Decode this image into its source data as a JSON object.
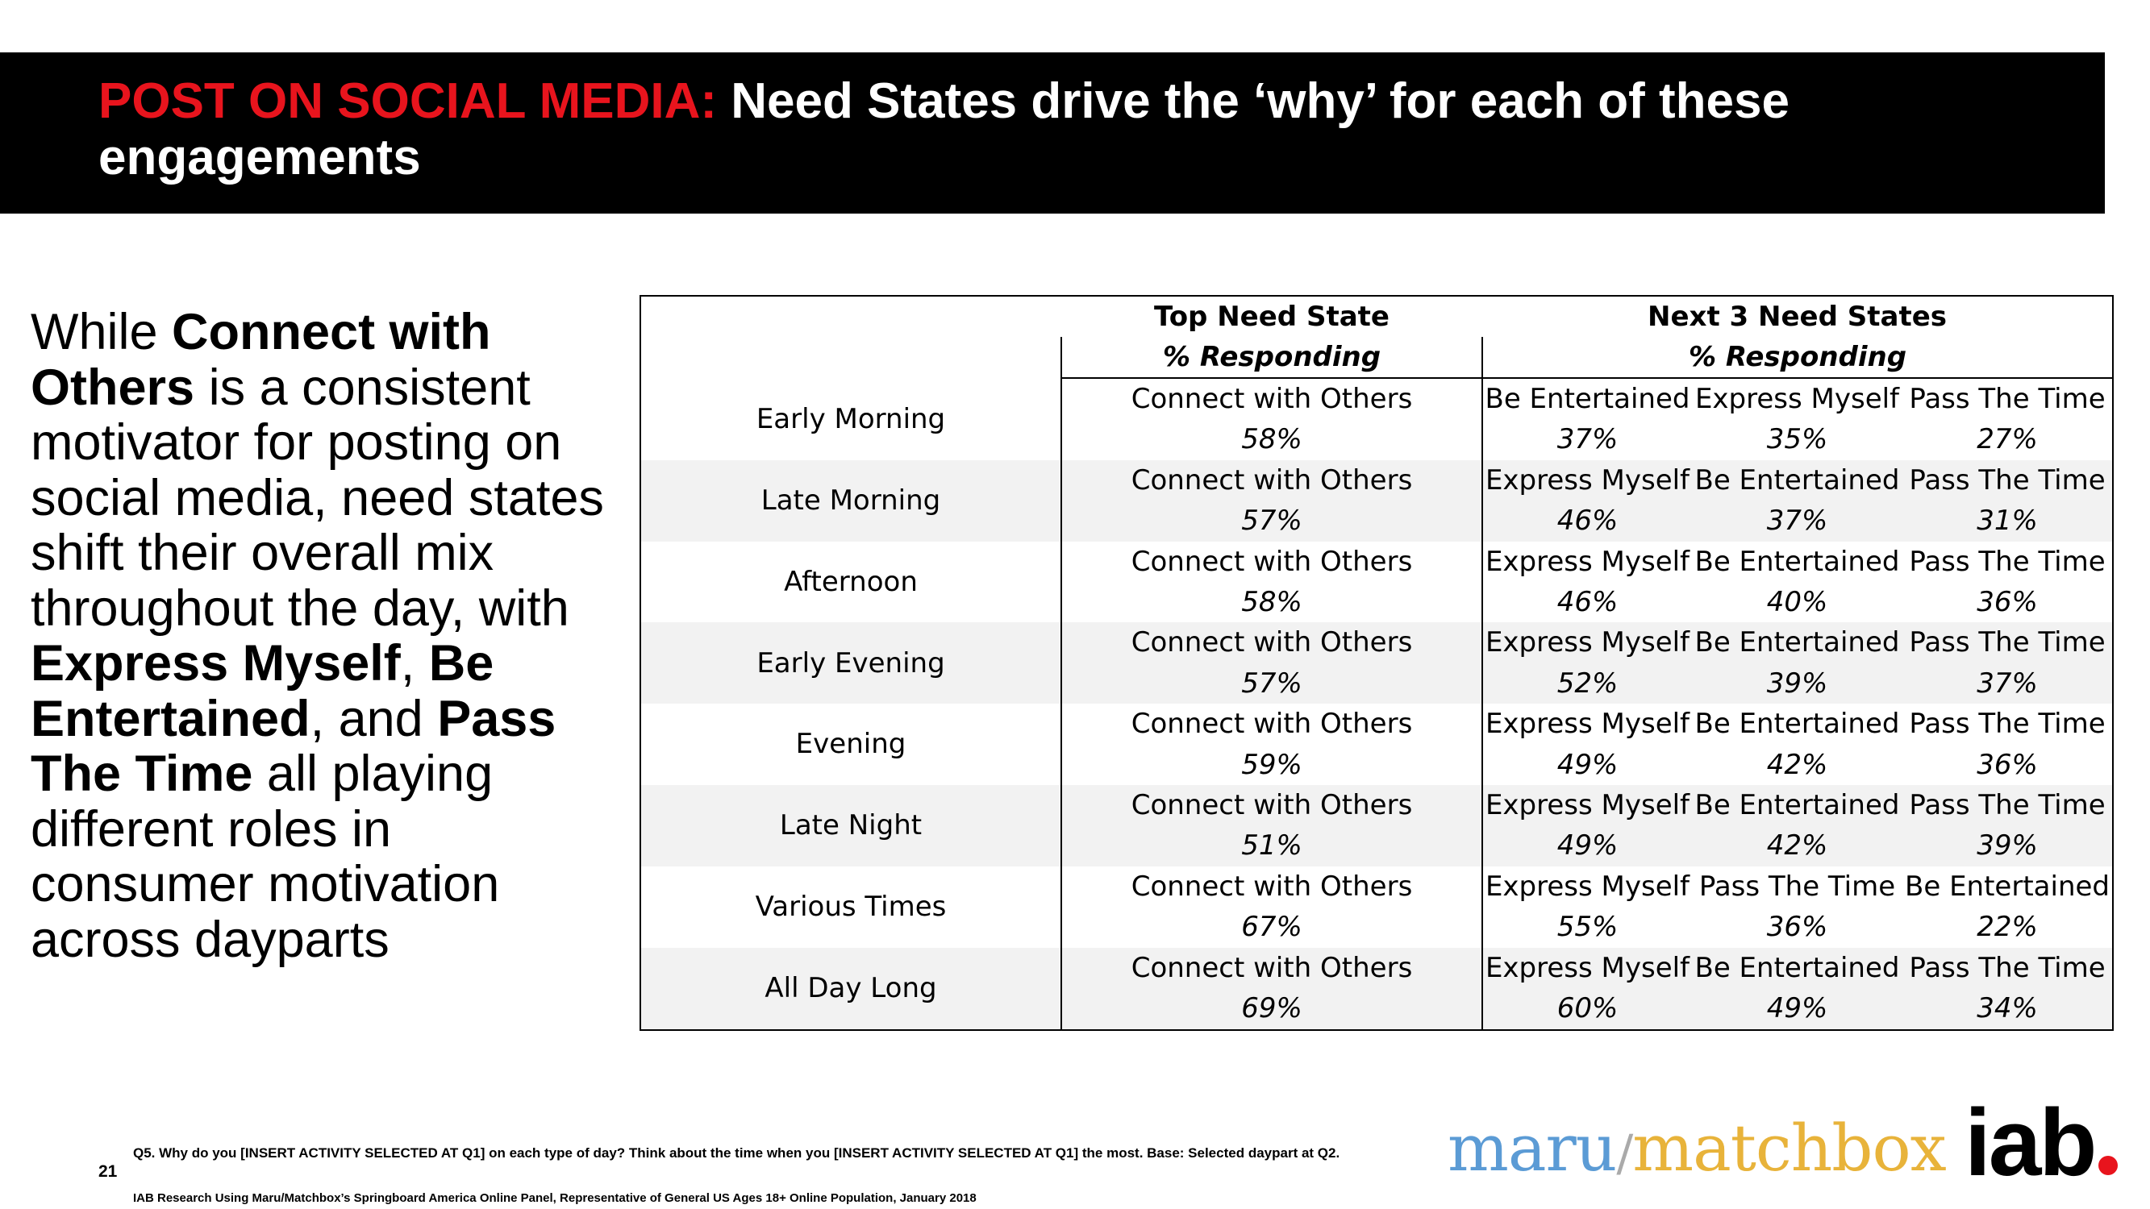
{
  "title": {
    "accent": "POST ON SOCIAL MEDIA:",
    "rest": " Need States drive the ‘why’ for each of these engagements"
  },
  "body": {
    "p1": "While ",
    "b1": "Connect with Others",
    "p2": " is a consistent motivator for posting on social media, need states shift their overall mix throughout the day, with ",
    "b2": "Express Myself",
    "p3": ", ",
    "b3": "Be Entertained",
    "p4": ", and ",
    "b4": "Pass The Time",
    "p5": " all playing different roles in consumer motivation across dayparts"
  },
  "table": {
    "top_header": "Top Need State",
    "next_header": "Next 3 Need States",
    "sub_header": "% Responding",
    "rows": [
      {
        "daypart": "Early Morning",
        "top": "Connect with Others",
        "top_pct": "58%",
        "n1": "Be Entertained",
        "n1_pct": "37%",
        "n2": "Express Myself",
        "n2_pct": "35%",
        "n3": "Pass The Time",
        "n3_pct": "27%"
      },
      {
        "daypart": "Late Morning",
        "top": "Connect with Others",
        "top_pct": "57%",
        "n1": "Express Myself",
        "n1_pct": "46%",
        "n2": "Be Entertained",
        "n2_pct": "37%",
        "n3": "Pass The Time",
        "n3_pct": "31%"
      },
      {
        "daypart": "Afternoon",
        "top": "Connect with Others",
        "top_pct": "58%",
        "n1": "Express Myself",
        "n1_pct": "46%",
        "n2": "Be Entertained",
        "n2_pct": "40%",
        "n3": "Pass The Time",
        "n3_pct": "36%"
      },
      {
        "daypart": "Early Evening",
        "top": "Connect with Others",
        "top_pct": "57%",
        "n1": "Express Myself",
        "n1_pct": "52%",
        "n2": "Be Entertained",
        "n2_pct": "39%",
        "n3": "Pass The Time",
        "n3_pct": "37%"
      },
      {
        "daypart": "Evening",
        "top": "Connect with Others",
        "top_pct": "59%",
        "n1": "Express Myself",
        "n1_pct": "49%",
        "n2": "Be Entertained",
        "n2_pct": "42%",
        "n3": "Pass The Time",
        "n3_pct": "36%"
      },
      {
        "daypart": "Late Night",
        "top": "Connect with Others",
        "top_pct": "51%",
        "n1": "Express Myself",
        "n1_pct": "49%",
        "n2": "Be Entertained",
        "n2_pct": "42%",
        "n3": "Pass The Time",
        "n3_pct": "39%"
      },
      {
        "daypart": "Various Times",
        "top": "Connect with Others",
        "top_pct": "67%",
        "n1": "Express Myself",
        "n1_pct": "55%",
        "n2": "Pass The Time",
        "n2_pct": "36%",
        "n3": "Be Entertained",
        "n3_pct": "22%"
      },
      {
        "daypart": "All Day Long",
        "top": "Connect with Others",
        "top_pct": "69%",
        "n1": "Express Myself",
        "n1_pct": "60%",
        "n2": "Be Entertained",
        "n2_pct": "49%",
        "n3": "Pass The Time",
        "n3_pct": "34%"
      }
    ]
  },
  "footer": {
    "page_number": "21",
    "question": "Q5. Why do you [INSERT ACTIVITY SELECTED AT Q1] on each type of day? Think about the time when you [INSERT ACTIVITY SELECTED AT Q1] the most. Base: Selected daypart at Q2.",
    "source": "IAB Research Using Maru/Matchbox’s Springboard America Online Panel, Representative of General US Ages 18+ Online Population, January 2018"
  },
  "logos": {
    "maru": "maru",
    "slash": "/",
    "matchbox": "matchbox",
    "iab": "iab"
  },
  "colors": {
    "accent_red": "#e8141d",
    "title_bar": "#000000",
    "row_shade": "#f2f2f2",
    "maru_blue": "#5b9bd5",
    "matchbox_gold": "#e8b33a"
  }
}
